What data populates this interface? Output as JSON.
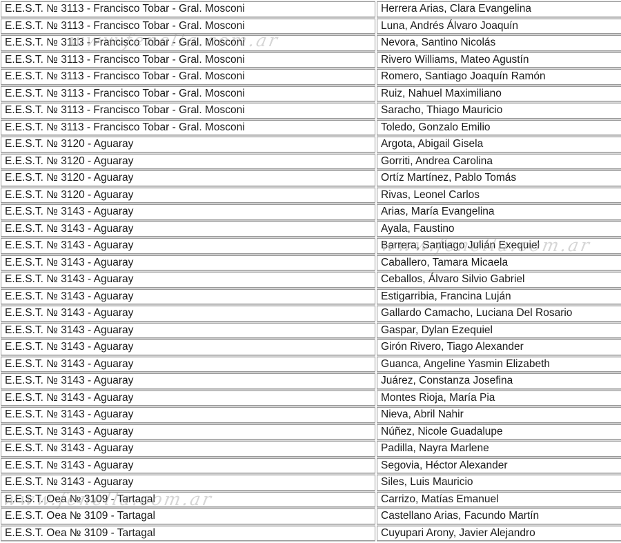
{
  "watermark": {
    "text": "www.fenella.com.ar"
  },
  "table": {
    "rows": [
      {
        "school": "E.E.S.T. № 3113 - Francisco Tobar - Gral. Mosconi",
        "student": "Herrera Arias, Clara Evangelina"
      },
      {
        "school": "E.E.S.T. № 3113 - Francisco Tobar - Gral. Mosconi",
        "student": "Luna, Andrés Álvaro Joaquín"
      },
      {
        "school": "E.E.S.T. № 3113 - Francisco Tobar - Gral. Mosconi",
        "student": "Nevora, Santino Nicolás"
      },
      {
        "school": "E.E.S.T. № 3113 - Francisco Tobar - Gral. Mosconi",
        "student": "Rivero Williams, Mateo Agustín"
      },
      {
        "school": "E.E.S.T. № 3113 - Francisco Tobar - Gral. Mosconi",
        "student": "Romero, Santiago Joaquín Ramón"
      },
      {
        "school": "E.E.S.T. № 3113 - Francisco Tobar - Gral. Mosconi",
        "student": "Ruiz, Nahuel Maximiliano"
      },
      {
        "school": "E.E.S.T. № 3113 - Francisco Tobar - Gral. Mosconi",
        "student": "Saracho, Thiago Mauricio"
      },
      {
        "school": "E.E.S.T. № 3113 - Francisco Tobar - Gral. Mosconi",
        "student": "Toledo, Gonzalo Emilio"
      },
      {
        "school": "E.E.S.T. № 3120 - Aguaray",
        "student": "Argota, Abigail Gisela"
      },
      {
        "school": "E.E.S.T. № 3120 - Aguaray",
        "student": "Gorriti, Andrea Carolina"
      },
      {
        "school": "E.E.S.T. № 3120 - Aguaray",
        "student": "Ortíz Martínez, Pablo Tomás"
      },
      {
        "school": "E.E.S.T. № 3120 - Aguaray",
        "student": "Rivas, Leonel Carlos"
      },
      {
        "school": "E.E.S.T. № 3143 - Aguaray",
        "student": "Arias, María Evangelina"
      },
      {
        "school": "E.E.S.T. № 3143 - Aguaray",
        "student": "Ayala, Faustino"
      },
      {
        "school": "E.E.S.T. № 3143 - Aguaray",
        "student": "Barrera, Santiago Julián Exequiel"
      },
      {
        "school": "E.E.S.T. № 3143 - Aguaray",
        "student": "Caballero, Tamara Micaela"
      },
      {
        "school": "E.E.S.T. № 3143 - Aguaray",
        "student": "Ceballos, Álvaro Silvio Gabriel"
      },
      {
        "school": "E.E.S.T. № 3143 - Aguaray",
        "student": "Estigarribia, Francina Luján"
      },
      {
        "school": "E.E.S.T. № 3143 - Aguaray",
        "student": "Gallardo Camacho, Luciana Del Rosario"
      },
      {
        "school": "E.E.S.T. № 3143 - Aguaray",
        "student": "Gaspar, Dylan Ezequiel"
      },
      {
        "school": "E.E.S.T. № 3143 - Aguaray",
        "student": "Girón Rivero, Tiago Alexander"
      },
      {
        "school": "E.E.S.T. № 3143 - Aguaray",
        "student": "Guanca, Angeline Yasmin Elizabeth"
      },
      {
        "school": "E.E.S.T. № 3143 - Aguaray",
        "student": "Juárez, Constanza Josefina"
      },
      {
        "school": "E.E.S.T. № 3143 - Aguaray",
        "student": "Montes Rioja, María Pia"
      },
      {
        "school": "E.E.S.T. № 3143 - Aguaray",
        "student": "Nieva, Abril Nahir"
      },
      {
        "school": "E.E.S.T. № 3143 - Aguaray",
        "student": "Núñez, Nicole Guadalupe"
      },
      {
        "school": "E.E.S.T. № 3143 - Aguaray",
        "student": "Padilla, Nayra Marlene"
      },
      {
        "school": "E.E.S.T. № 3143 - Aguaray",
        "student": "Segovia, Héctor Alexander"
      },
      {
        "school": "E.E.S.T. № 3143 - Aguaray",
        "student": "Siles, Luis Mauricio"
      },
      {
        "school": "E.E.S.T. Oea № 3109 - Tartagal",
        "student": "Carrizo, Matías Emanuel"
      },
      {
        "school": "E.E.S.T. Oea № 3109 - Tartagal",
        "student": "Castellano Arias, Facundo Martín"
      },
      {
        "school": "E.E.S.T. Oea № 3109 - Tartagal",
        "student": "Cuyupari Arony, Javier Alejandro"
      }
    ]
  }
}
